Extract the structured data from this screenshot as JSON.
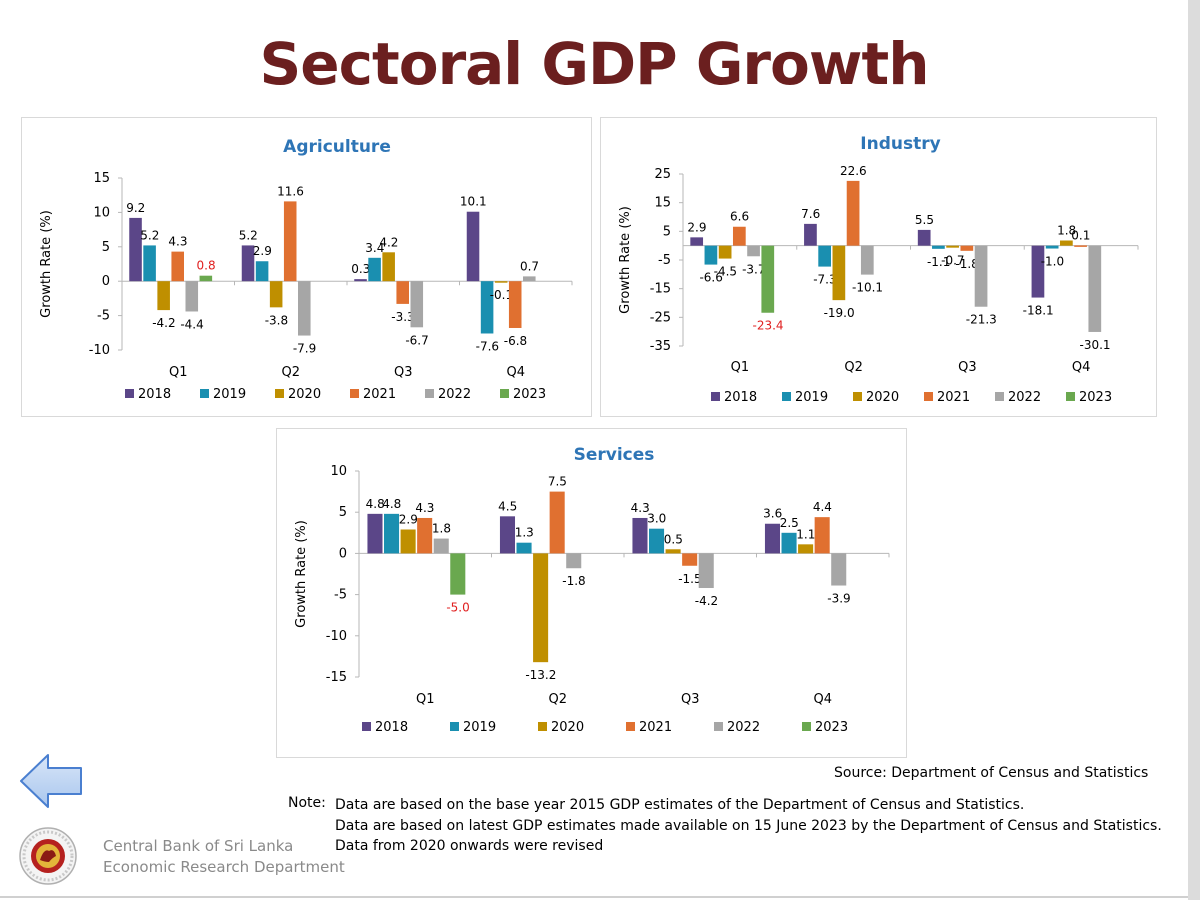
{
  "page_title": "Sectoral GDP Growth",
  "source_text": "Source: Department of Census and Statistics",
  "note_label": "Note:",
  "notes": [
    "Data are based on the base year 2015 GDP estimates of the Department of Census and Statistics.",
    "Data are based on latest GDP estimates made available on 15 June 2023 by the Department of Census and Statistics.",
    "Data from 2020 onwards were revised"
  ],
  "organization": {
    "line1": "Central Bank of Sri Lanka",
    "line2": "Economic Research Department"
  },
  "nav": {
    "back_icon": "left-arrow-icon"
  },
  "colors": {
    "title": "#6b1f1f",
    "chart_title": "#2e75b6",
    "highlight_label": "#e02020",
    "series": [
      "#5b4688",
      "#1a8fb0",
      "#bf8f00",
      "#e07030",
      "#a6a6a6",
      "#6aa84f"
    ]
  },
  "chart_data": [
    {
      "type": "bar",
      "title": "Agriculture",
      "ylabel": "Growth Rate (%)",
      "xlabel": "",
      "ylim": [
        -10,
        15
      ],
      "yticks": [
        15,
        10,
        5,
        0,
        -5,
        -10
      ],
      "categories": [
        "Q1",
        "Q2",
        "Q3",
        "Q4"
      ],
      "series": [
        {
          "name": "2018",
          "values": [
            9.2,
            5.2,
            0.3,
            10.1
          ]
        },
        {
          "name": "2019",
          "values": [
            5.2,
            2.9,
            3.4,
            -7.6
          ]
        },
        {
          "name": "2020",
          "values": [
            -4.2,
            -3.8,
            4.2,
            -0.1
          ]
        },
        {
          "name": "2021",
          "values": [
            4.3,
            11.6,
            -3.3,
            -6.8
          ]
        },
        {
          "name": "2022",
          "values": [
            -4.4,
            -7.9,
            -6.7,
            0.7
          ]
        },
        {
          "name": "2023",
          "values": [
            0.8,
            null,
            null,
            null
          ]
        }
      ],
      "highlight": [
        [
          5,
          0
        ]
      ],
      "legend_position": "bottom"
    },
    {
      "type": "bar",
      "title": "Industry",
      "ylabel": "Growth Rate (%)",
      "xlabel": "",
      "ylim": [
        -35,
        25
      ],
      "yticks": [
        25,
        15,
        5,
        -5,
        -15,
        -25,
        -35
      ],
      "categories": [
        "Q1",
        "Q2",
        "Q3",
        "Q4"
      ],
      "series": [
        {
          "name": "2018",
          "values": [
            2.9,
            7.6,
            5.5,
            -18.1
          ]
        },
        {
          "name": "2019",
          "values": [
            -6.6,
            -7.3,
            -1.1,
            -1.0
          ]
        },
        {
          "name": "2020",
          "values": [
            -4.5,
            -19.0,
            -0.7,
            1.8
          ]
        },
        {
          "name": "2021",
          "values": [
            6.6,
            22.6,
            -1.8,
            0.1
          ]
        },
        {
          "name": "2022",
          "values": [
            -3.7,
            -10.1,
            -21.3,
            -30.1
          ]
        },
        {
          "name": "2023",
          "values": [
            -23.4,
            null,
            null,
            null
          ]
        }
      ],
      "highlight": [
        [
          5,
          0
        ]
      ],
      "legend_position": "bottom"
    },
    {
      "type": "bar",
      "title": "Services",
      "ylabel": "Growth Rate (%)",
      "xlabel": "",
      "ylim": [
        -15,
        10
      ],
      "yticks": [
        10,
        5,
        0,
        -5,
        -10,
        -15
      ],
      "categories": [
        "Q1",
        "Q2",
        "Q3",
        "Q4"
      ],
      "series": [
        {
          "name": "2018",
          "values": [
            4.8,
            4.5,
            4.3,
            3.6
          ]
        },
        {
          "name": "2019",
          "values": [
            4.8,
            1.3,
            3.0,
            2.5
          ]
        },
        {
          "name": "2020",
          "values": [
            2.9,
            -13.2,
            0.5,
            1.1
          ]
        },
        {
          "name": "2021",
          "values": [
            4.3,
            7.5,
            -1.5,
            4.4
          ]
        },
        {
          "name": "2022",
          "values": [
            1.8,
            -1.8,
            -4.2,
            -3.9
          ]
        },
        {
          "name": "2023",
          "values": [
            -5.0,
            null,
            null,
            null
          ]
        }
      ],
      "highlight": [
        [
          5,
          0
        ]
      ],
      "legend_position": "bottom"
    }
  ]
}
